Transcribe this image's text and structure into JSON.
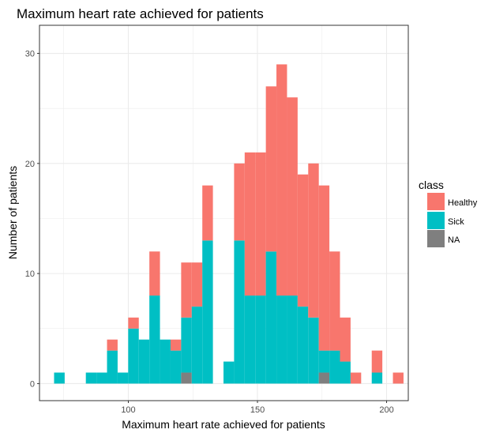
{
  "chart_data": {
    "type": "bar",
    "title": "Maximum heart rate achieved for patients",
    "xlabel": "Maximum heart rate achieved for patients",
    "ylabel": "Number of patients",
    "xlim": [
      65.6,
      208.4
    ],
    "ylim": [
      -1.55,
      32.55
    ],
    "x_ticks": [
      100,
      150,
      200
    ],
    "y_ticks": [
      0,
      10,
      20,
      30
    ],
    "bin_width": 4.1,
    "bar_position": "stack",
    "grid": true,
    "legend": {
      "title": "class",
      "position": "right",
      "entries": [
        "Healthy",
        "Sick",
        "NA"
      ]
    },
    "colors": {
      "Healthy": "#F8766D",
      "Sick": "#00BFC4",
      "NA": "#7F7F7F"
    },
    "bin_centers": [
      73.3,
      77.4,
      81.5,
      85.6,
      89.7,
      93.8,
      97.9,
      102.0,
      106.1,
      110.2,
      114.3,
      118.4,
      122.5,
      126.6,
      130.7,
      134.8,
      138.9,
      143.0,
      147.1,
      151.2,
      155.3,
      159.4,
      163.5,
      167.6,
      171.7,
      175.8,
      179.9,
      184.0,
      188.1,
      192.2,
      196.3,
      200.4,
      204.5
    ],
    "series": [
      {
        "name": "Healthy",
        "values": [
          0,
          0,
          0,
          0,
          0,
          1,
          0,
          1,
          0,
          4,
          0,
          1,
          5,
          4,
          5,
          0,
          0,
          7,
          13,
          13,
          15,
          21,
          18,
          12,
          14,
          15,
          9,
          4,
          1,
          0,
          2,
          0,
          1
        ]
      },
      {
        "name": "Sick",
        "values": [
          1,
          0,
          0,
          1,
          1,
          3,
          1,
          5,
          4,
          8,
          4,
          3,
          5,
          7,
          13,
          0,
          2,
          13,
          8,
          8,
          12,
          8,
          8,
          7,
          6,
          2,
          3,
          2,
          0,
          0,
          1,
          0,
          0
        ]
      },
      {
        "name": "NA",
        "values": [
          0,
          0,
          0,
          0,
          0,
          0,
          0,
          0,
          0,
          0,
          0,
          0,
          1,
          0,
          0,
          0,
          0,
          0,
          0,
          0,
          0,
          0,
          0,
          0,
          0,
          1,
          0,
          0,
          0,
          0,
          0,
          0,
          0
        ]
      }
    ]
  }
}
